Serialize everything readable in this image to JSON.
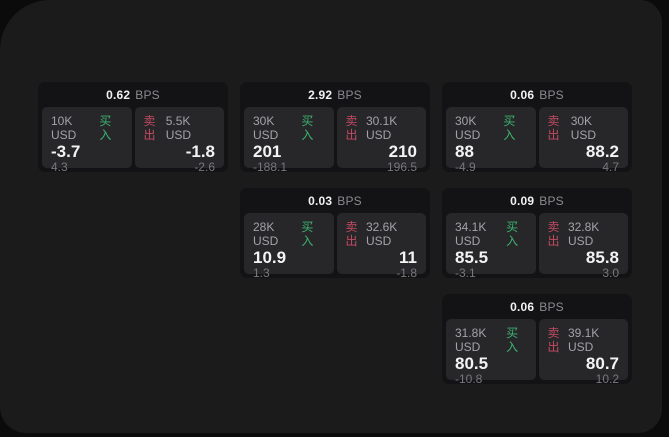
{
  "labels": {
    "bps": "BPS",
    "buy": "买入",
    "sell": "卖出"
  },
  "colors": {
    "buy": "#3db470",
    "sell": "#c44a62",
    "panel_bg": "#1b1b1c",
    "card_bg": "#131315",
    "subpanel_bg": "#27272a"
  },
  "cards": [
    {
      "bps": "0.62",
      "buy": {
        "amount": "10K USD",
        "value": "-3.7",
        "delta": "4.3"
      },
      "sell": {
        "amount": "5.5K USD",
        "value": "-1.8",
        "delta": "-2.6"
      }
    },
    {
      "bps": "2.92",
      "buy": {
        "amount": "30K USD",
        "value": "201",
        "delta": "-188.1"
      },
      "sell": {
        "amount": "30.1K USD",
        "value": "210",
        "delta": "196.5"
      }
    },
    {
      "bps": "0.06",
      "buy": {
        "amount": "30K USD",
        "value": "88",
        "delta": "-4.9"
      },
      "sell": {
        "amount": "30K USD",
        "value": "88.2",
        "delta": "4.7"
      }
    },
    {
      "bps": "0.03",
      "buy": {
        "amount": "28K USD",
        "value": "10.9",
        "delta": "1.3"
      },
      "sell": {
        "amount": "32.6K USD",
        "value": "11",
        "delta": "-1.8"
      }
    },
    {
      "bps": "0.09",
      "buy": {
        "amount": "34.1K USD",
        "value": "85.5",
        "delta": "-3.1"
      },
      "sell": {
        "amount": "32.8K USD",
        "value": "85.8",
        "delta": "3.0"
      }
    },
    {
      "bps": "0.06",
      "buy": {
        "amount": "31.8K USD",
        "value": "80.5",
        "delta": "-10.8"
      },
      "sell": {
        "amount": "39.1K USD",
        "value": "80.7",
        "delta": "10.2"
      }
    }
  ]
}
